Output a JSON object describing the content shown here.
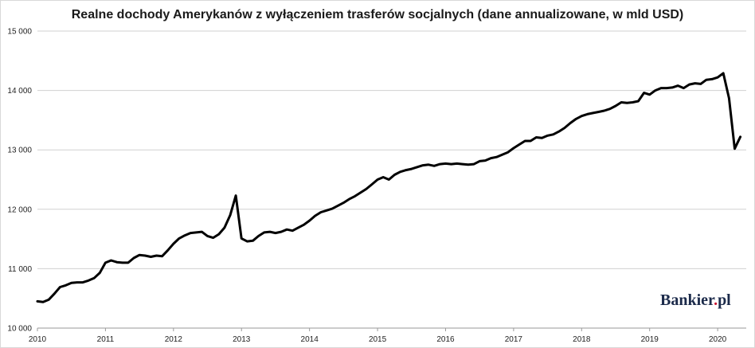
{
  "chart_data": {
    "type": "line",
    "title": "Realne dochody Amerykanów z wyłączeniem trasferów socjalnych (dane annualizowane, w mld USD)",
    "xlabel": "",
    "ylabel": "",
    "ylim": [
      10000,
      15000
    ],
    "xlim": [
      2010.0,
      2020.42
    ],
    "yticks": [
      10000,
      11000,
      12000,
      13000,
      14000,
      15000
    ],
    "ytick_labels": [
      "10 000",
      "11 000",
      "12 000",
      "13 000",
      "14 000",
      "15 000"
    ],
    "xticks": [
      2010,
      2011,
      2012,
      2013,
      2014,
      2015,
      2016,
      2017,
      2018,
      2019,
      2020
    ],
    "xtick_labels": [
      "2010",
      "2011",
      "2012",
      "2013",
      "2014",
      "2015",
      "2016",
      "2017",
      "2018",
      "2019",
      "2020"
    ],
    "grid": "horizontal",
    "legend": "none",
    "series": [
      {
        "color": "#000000",
        "x": [
          2010.0,
          2010.083,
          2010.167,
          2010.25,
          2010.333,
          2010.417,
          2010.5,
          2010.583,
          2010.667,
          2010.75,
          2010.833,
          2010.917,
          2011.0,
          2011.083,
          2011.167,
          2011.25,
          2011.333,
          2011.417,
          2011.5,
          2011.583,
          2011.667,
          2011.75,
          2011.833,
          2011.917,
          2012.0,
          2012.083,
          2012.167,
          2012.25,
          2012.333,
          2012.417,
          2012.5,
          2012.583,
          2012.667,
          2012.75,
          2012.833,
          2012.917,
          2013.0,
          2013.083,
          2013.167,
          2013.25,
          2013.333,
          2013.417,
          2013.5,
          2013.583,
          2013.667,
          2013.75,
          2013.833,
          2013.917,
          2014.0,
          2014.083,
          2014.167,
          2014.25,
          2014.333,
          2014.417,
          2014.5,
          2014.583,
          2014.667,
          2014.75,
          2014.833,
          2014.917,
          2015.0,
          2015.083,
          2015.167,
          2015.25,
          2015.333,
          2015.417,
          2015.5,
          2015.583,
          2015.667,
          2015.75,
          2015.833,
          2015.917,
          2016.0,
          2016.083,
          2016.167,
          2016.25,
          2016.333,
          2016.417,
          2016.5,
          2016.583,
          2016.667,
          2016.75,
          2016.833,
          2016.917,
          2017.0,
          2017.083,
          2017.167,
          2017.25,
          2017.333,
          2017.417,
          2017.5,
          2017.583,
          2017.667,
          2017.75,
          2017.833,
          2017.917,
          2018.0,
          2018.083,
          2018.167,
          2018.25,
          2018.333,
          2018.417,
          2018.5,
          2018.583,
          2018.667,
          2018.75,
          2018.833,
          2018.917,
          2019.0,
          2019.083,
          2019.167,
          2019.25,
          2019.333,
          2019.417,
          2019.5,
          2019.583,
          2019.667,
          2019.75,
          2019.833,
          2019.917,
          2020.0,
          2020.083,
          2020.167,
          2020.25,
          2020.333
        ],
        "values": [
          10450,
          10440,
          10480,
          10580,
          10690,
          10720,
          10760,
          10770,
          10770,
          10800,
          10840,
          10930,
          11100,
          11140,
          11110,
          11100,
          11100,
          11180,
          11230,
          11220,
          11200,
          11220,
          11210,
          11310,
          11420,
          11510,
          11560,
          11600,
          11610,
          11620,
          11550,
          11520,
          11580,
          11690,
          11900,
          12230,
          11510,
          11460,
          11470,
          11550,
          11610,
          11620,
          11600,
          11620,
          11660,
          11640,
          11690,
          11740,
          11810,
          11890,
          11950,
          11980,
          12010,
          12060,
          12110,
          12170,
          12220,
          12280,
          12340,
          12420,
          12500,
          12540,
          12500,
          12580,
          12630,
          12660,
          12680,
          12710,
          12740,
          12750,
          12730,
          12760,
          12770,
          12760,
          12770,
          12760,
          12750,
          12760,
          12810,
          12820,
          12860,
          12880,
          12920,
          12960,
          13030,
          13090,
          13150,
          13150,
          13210,
          13200,
          13240,
          13260,
          13310,
          13370,
          13450,
          13520,
          13570,
          13600,
          13620,
          13640,
          13660,
          13690,
          13740,
          13800,
          13790,
          13800,
          13820,
          13960,
          13930,
          14000,
          14040,
          14040,
          14050,
          14080,
          14040,
          14100,
          14120,
          14110,
          14180,
          14190,
          14220,
          14290,
          13870,
          13020,
          13220
        ]
      }
    ]
  },
  "brand": {
    "name": "Bankier",
    "dot": ".",
    "suffix": "pl"
  }
}
